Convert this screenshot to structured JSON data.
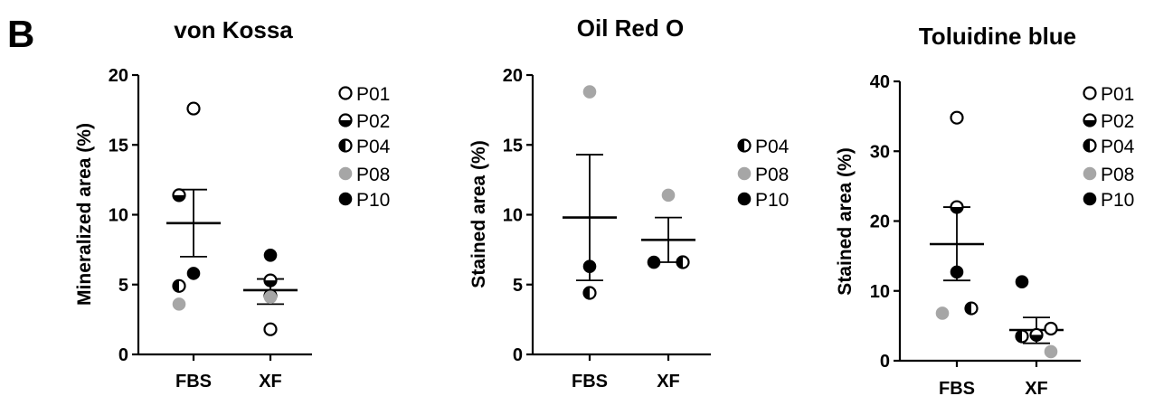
{
  "figure": {
    "panel_label": "B"
  },
  "chart_data": [
    {
      "type": "scatter",
      "title": "von Kossa",
      "ylabel": "Mineralized area (%)",
      "xlabel": "",
      "categories": [
        "FBS",
        "XF"
      ],
      "ylim": [
        0,
        20
      ],
      "yticks": [
        0,
        5,
        10,
        15,
        20
      ],
      "series": [
        {
          "name": "P01",
          "marker": "open",
          "values": [
            17.6,
            1.8
          ]
        },
        {
          "name": "P02",
          "marker": "half-bottom",
          "values": [
            11.4,
            5.3
          ]
        },
        {
          "name": "P04",
          "marker": "half-left",
          "values": [
            4.9,
            4.2
          ]
        },
        {
          "name": "P08",
          "marker": "gray",
          "values": [
            3.6,
            4.1
          ]
        },
        {
          "name": "P10",
          "marker": "filled",
          "values": [
            5.8,
            7.1
          ]
        }
      ],
      "point_offsets": [
        [
          0,
          0
        ],
        [
          -1,
          0
        ],
        [
          -1,
          0
        ],
        [
          -1,
          0
        ],
        [
          0,
          0
        ]
      ],
      "summary": [
        {
          "mean": 9.4,
          "upper": 11.8,
          "lower": 7.0
        },
        {
          "mean": 4.6,
          "upper": 5.4,
          "lower": 3.6
        }
      ],
      "legend": [
        "P01",
        "P02",
        "P04",
        "P08",
        "P10"
      ]
    },
    {
      "type": "scatter",
      "title": "Oil Red O",
      "ylabel": "Stained area (%)",
      "xlabel": "",
      "categories": [
        "FBS",
        "XF"
      ],
      "ylim": [
        0,
        20
      ],
      "yticks": [
        0,
        5,
        10,
        15,
        20
      ],
      "series": [
        {
          "name": "P04",
          "marker": "half-left",
          "values": [
            4.4,
            6.6
          ]
        },
        {
          "name": "P08",
          "marker": "gray",
          "values": [
            18.8,
            11.4
          ]
        },
        {
          "name": "P10",
          "marker": "filled",
          "values": [
            6.3,
            6.6
          ]
        }
      ],
      "point_offsets": [
        [
          0,
          1
        ],
        [
          0,
          0
        ],
        [
          0,
          -1
        ]
      ],
      "summary": [
        {
          "mean": 9.8,
          "upper": 14.3,
          "lower": 5.3
        },
        {
          "mean": 8.2,
          "upper": 9.8,
          "lower": 6.6
        }
      ],
      "legend": [
        "P04",
        "P08",
        "P10"
      ]
    },
    {
      "type": "scatter",
      "title": "Toluidine blue",
      "ylabel": "Stained area (%)",
      "xlabel": "",
      "categories": [
        "FBS",
        "XF"
      ],
      "ylim": [
        0,
        40
      ],
      "yticks": [
        0,
        10,
        20,
        30,
        40
      ],
      "series": [
        {
          "name": "P01",
          "marker": "open",
          "values": [
            34.8,
            4.6
          ]
        },
        {
          "name": "P02",
          "marker": "half-bottom",
          "values": [
            22.0,
            3.7
          ]
        },
        {
          "name": "P04",
          "marker": "half-left",
          "values": [
            7.5,
            3.5
          ]
        },
        {
          "name": "P08",
          "marker": "gray",
          "values": [
            6.8,
            1.3
          ]
        },
        {
          "name": "P10",
          "marker": "filled",
          "values": [
            12.7,
            11.3
          ]
        }
      ],
      "point_offsets": [
        [
          0,
          1
        ],
        [
          0,
          0
        ],
        [
          1,
          -1
        ],
        [
          -1,
          1
        ],
        [
          0,
          -1
        ]
      ],
      "summary": [
        {
          "mean": 16.7,
          "upper": 22.0,
          "lower": 11.5
        },
        {
          "mean": 4.4,
          "upper": 6.2,
          "lower": 2.5
        }
      ],
      "legend": [
        "P01",
        "P02",
        "P04",
        "P08",
        "P10"
      ]
    }
  ]
}
